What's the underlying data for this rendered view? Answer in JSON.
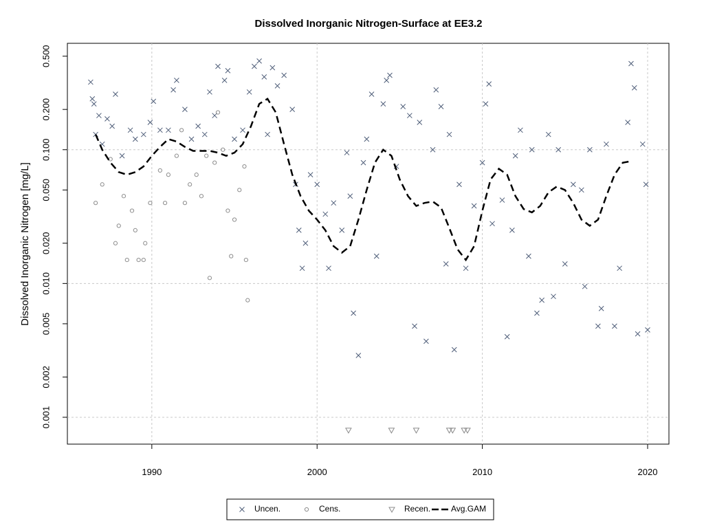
{
  "chart_data": {
    "type": "scatter",
    "title": "Dissolved Inorganic Nitrogen-Surface at EE3.2",
    "ylabel": "Dissolved Inorganic Nitrogen [mg/L]",
    "log_y": true,
    "grid": true,
    "legend": "bottom",
    "xlim": [
      1984.89,
      2021.29
    ],
    "xticks": [
      1990,
      2000,
      2010,
      2020
    ],
    "ylim": [
      0.00063,
      0.624
    ],
    "yticks": [
      {
        "value": 0.001,
        "label": "0.001"
      },
      {
        "value": 0.002,
        "label": "0.002"
      },
      {
        "value": 0.005,
        "label": "0.005"
      },
      {
        "value": 0.01,
        "label": "0.010"
      },
      {
        "value": 0.02,
        "label": "0.020"
      },
      {
        "value": 0.05,
        "label": "0.050"
      },
      {
        "value": 0.1,
        "label": "0.100"
      },
      {
        "value": 0.2,
        "label": "0.200"
      },
      {
        "value": 0.5,
        "label": "0.500"
      }
    ],
    "series": [
      {
        "name": "Uncen.",
        "marker": "x",
        "color": "#4e5d78",
        "x": [
          1986.3,
          1986.4,
          1986.5,
          1986.6,
          1986.8,
          1987.0,
          1987.3,
          1987.6,
          1987.8,
          1988.2,
          1988.7,
          1989.0,
          1989.5,
          1989.9,
          1990.1,
          1990.5,
          1991.0,
          1991.3,
          1991.5,
          1992.0,
          1992.4,
          1992.8,
          1993.2,
          1993.5,
          1993.8,
          1994.0,
          1994.4,
          1994.6,
          1995.0,
          1995.5,
          1995.9,
          1996.2,
          1996.5,
          1996.8,
          1997.0,
          1997.3,
          1997.6,
          1998.0,
          1998.5,
          1998.7,
          1998.9,
          1999.1,
          1999.3,
          1999.6,
          2000.0,
          2000.5,
          2000.7,
          2001.0,
          2001.5,
          2001.8,
          2002.0,
          2002.2,
          2002.5,
          2002.8,
          2003.0,
          2003.3,
          2003.6,
          2004.0,
          2004.2,
          2004.4,
          2004.8,
          2005.2,
          2005.6,
          2005.9,
          2006.2,
          2006.6,
          2007.0,
          2007.2,
          2007.5,
          2007.8,
          2008.0,
          2008.3,
          2008.6,
          2009.0,
          2009.5,
          2010.0,
          2010.2,
          2010.4,
          2010.6,
          2011.2,
          2011.5,
          2011.8,
          2012.0,
          2012.3,
          2012.8,
          2013.0,
          2013.3,
          2013.6,
          2014.0,
          2014.3,
          2014.6,
          2015.0,
          2015.5,
          2016.0,
          2016.2,
          2016.5,
          2017.0,
          2017.2,
          2017.5,
          2018.0,
          2018.3,
          2018.8,
          2019.0,
          2019.2,
          2019.4,
          2019.7,
          2019.9,
          2020.0
        ],
        "values": [
          0.32,
          0.24,
          0.22,
          0.13,
          0.18,
          0.11,
          0.17,
          0.15,
          0.26,
          0.09,
          0.14,
          0.12,
          0.13,
          0.16,
          0.23,
          0.14,
          0.14,
          0.28,
          0.33,
          0.2,
          0.12,
          0.15,
          0.13,
          0.27,
          0.18,
          0.42,
          0.33,
          0.39,
          0.12,
          0.14,
          0.27,
          0.42,
          0.46,
          0.35,
          0.13,
          0.41,
          0.3,
          0.36,
          0.2,
          0.055,
          0.025,
          0.013,
          0.02,
          0.065,
          0.055,
          0.033,
          0.013,
          0.04,
          0.025,
          0.095,
          0.045,
          0.006,
          0.0029,
          0.08,
          0.12,
          0.26,
          0.016,
          0.22,
          0.33,
          0.36,
          0.075,
          0.21,
          0.18,
          0.0048,
          0.16,
          0.0037,
          0.1,
          0.28,
          0.21,
          0.014,
          0.13,
          0.0032,
          0.055,
          0.013,
          0.038,
          0.08,
          0.22,
          0.31,
          0.028,
          0.042,
          0.004,
          0.025,
          0.09,
          0.14,
          0.016,
          0.1,
          0.006,
          0.0075,
          0.13,
          0.008,
          0.1,
          0.014,
          0.055,
          0.05,
          0.0095,
          0.1,
          0.0048,
          0.0065,
          0.11,
          0.0048,
          0.013,
          0.16,
          0.44,
          0.29,
          0.0042,
          0.11,
          0.055,
          0.0045
        ]
      },
      {
        "name": "Cens.",
        "marker": "o",
        "color": "#8c8c8c",
        "x": [
          1986.6,
          1987.0,
          1987.5,
          1987.8,
          1988.0,
          1988.3,
          1988.5,
          1988.8,
          1989.0,
          1989.2,
          1989.5,
          1989.6,
          1989.9,
          1990.5,
          1990.8,
          1991.0,
          1991.5,
          1991.8,
          1992.0,
          1992.3,
          1992.7,
          1993.0,
          1993.3,
          1993.5,
          1993.8,
          1994.0,
          1994.3,
          1994.6,
          1994.8,
          1995.0,
          1995.3,
          1995.6,
          1995.7,
          1995.8
        ],
        "values": [
          0.04,
          0.055,
          0.085,
          0.02,
          0.027,
          0.045,
          0.015,
          0.035,
          0.025,
          0.015,
          0.015,
          0.02,
          0.04,
          0.07,
          0.04,
          0.065,
          0.09,
          0.14,
          0.04,
          0.055,
          0.065,
          0.045,
          0.09,
          0.011,
          0.08,
          0.19,
          0.1,
          0.035,
          0.016,
          0.03,
          0.05,
          0.075,
          0.015,
          0.0075
        ]
      },
      {
        "name": "Recen.",
        "marker": "v",
        "color": "#8c8c8c",
        "x": [
          2001.9,
          2004.5,
          2006.0,
          2008.0,
          2008.2,
          2008.9,
          2009.1
        ],
        "values": [
          0.0008,
          0.0008,
          0.0008,
          0.0008,
          0.0008,
          0.0008,
          0.0008
        ]
      },
      {
        "name": "Avg.GAM",
        "marker": "line",
        "dash": true,
        "color": "#000000",
        "x": [
          1986.6,
          1987.0,
          1987.5,
          1988.0,
          1988.5,
          1989.0,
          1989.5,
          1990.0,
          1990.5,
          1991.0,
          1991.5,
          1992.0,
          1992.5,
          1993.0,
          1993.5,
          1994.0,
          1994.5,
          1995.0,
          1995.5,
          1996.0,
          1996.5,
          1997.0,
          1997.5,
          1998.0,
          1998.5,
          1999.0,
          1999.5,
          2000.0,
          2000.5,
          2001.0,
          2001.5,
          2002.0,
          2002.5,
          2003.0,
          2003.5,
          2004.0,
          2004.5,
          2005.0,
          2005.5,
          2006.0,
          2006.5,
          2007.0,
          2007.5,
          2008.0,
          2008.5,
          2009.0,
          2009.5,
          2010.0,
          2010.5,
          2011.0,
          2011.5,
          2012.0,
          2012.5,
          2013.0,
          2013.5,
          2014.0,
          2014.5,
          2015.0,
          2015.5,
          2016.0,
          2016.5,
          2017.0,
          2017.5,
          2018.0,
          2018.5,
          2019.0
        ],
        "values": [
          0.13,
          0.1,
          0.08,
          0.068,
          0.065,
          0.068,
          0.075,
          0.09,
          0.105,
          0.12,
          0.115,
          0.105,
          0.098,
          0.098,
          0.098,
          0.095,
          0.09,
          0.095,
          0.11,
          0.15,
          0.22,
          0.24,
          0.19,
          0.11,
          0.065,
          0.045,
          0.035,
          0.03,
          0.025,
          0.019,
          0.017,
          0.019,
          0.03,
          0.05,
          0.08,
          0.1,
          0.09,
          0.06,
          0.045,
          0.038,
          0.04,
          0.041,
          0.037,
          0.026,
          0.018,
          0.015,
          0.019,
          0.035,
          0.06,
          0.072,
          0.065,
          0.045,
          0.036,
          0.034,
          0.038,
          0.048,
          0.053,
          0.05,
          0.04,
          0.03,
          0.027,
          0.03,
          0.045,
          0.065,
          0.08,
          0.082
        ]
      }
    ]
  }
}
